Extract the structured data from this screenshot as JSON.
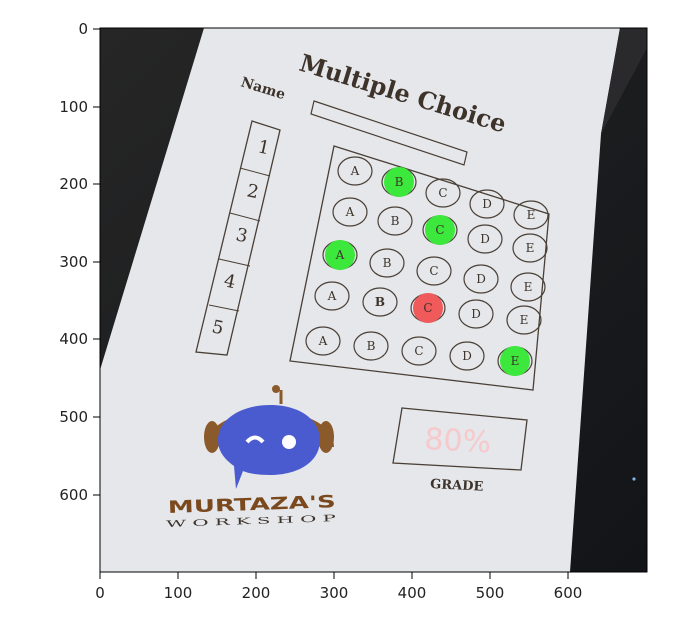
{
  "axes": {
    "x_ticks": [
      "0",
      "100",
      "200",
      "300",
      "400",
      "500",
      "600"
    ],
    "y_ticks": [
      "0",
      "100",
      "200",
      "300",
      "400",
      "500",
      "600"
    ]
  },
  "sheet": {
    "title": "Multiple Choice",
    "name_label": "Name",
    "question_numbers": [
      "1",
      "2",
      "3",
      "4",
      "5"
    ],
    "options": [
      "A",
      "B",
      "C",
      "D",
      "E"
    ],
    "grade_label": "GRADE",
    "grade_value": "80%",
    "logo_text": "MURTAZA'S",
    "logo_subtext": "W O R K S H O P"
  },
  "answers": [
    {
      "correct": "B",
      "marked": "B",
      "result": "correct"
    },
    {
      "correct": "C",
      "marked": "C",
      "result": "correct"
    },
    {
      "correct": "A",
      "marked": "A",
      "result": "correct"
    },
    {
      "correct": "B",
      "marked": "C",
      "result": "wrong"
    },
    {
      "correct": "E",
      "marked": "E",
      "result": "correct"
    }
  ],
  "colors": {
    "correct_fill": "#3be83b",
    "wrong_fill": "#f05a5a",
    "grade_text": "#f6c9cc",
    "sheet": "#e6e8ea",
    "background": "#1b1b1b"
  }
}
